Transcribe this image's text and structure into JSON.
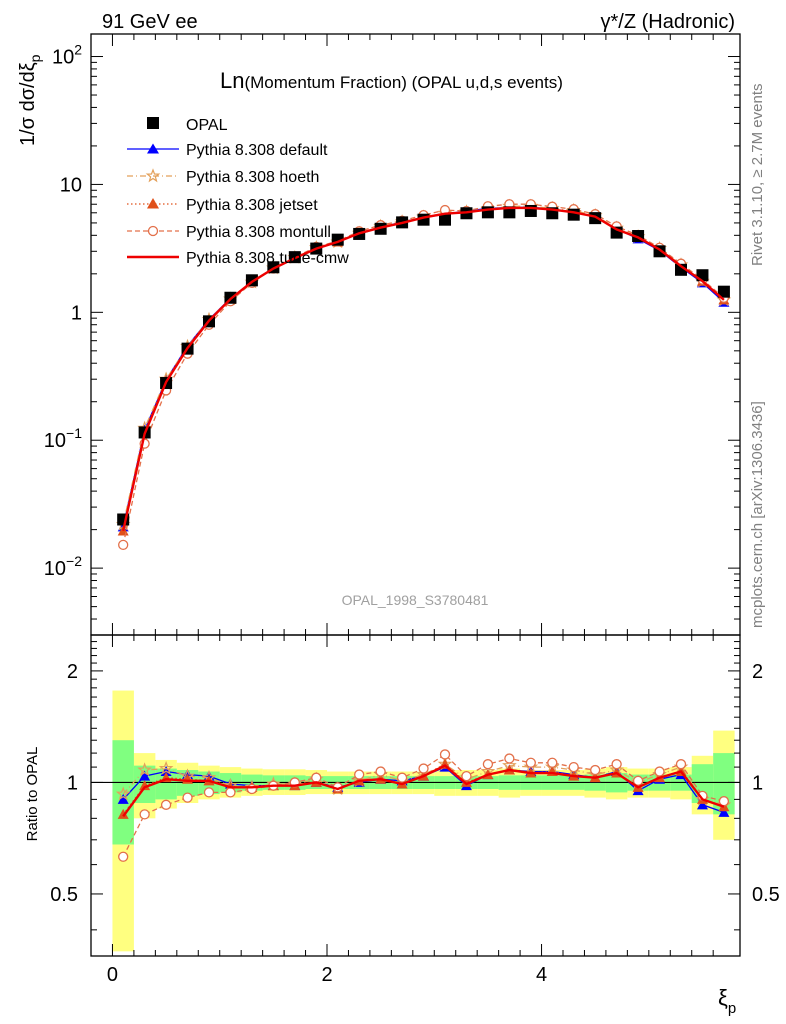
{
  "header": {
    "left": "91 GeV ee",
    "right": "γ*/Z (Hadronic)"
  },
  "side_text": {
    "rivet": "Rivet 3.1.10, ≥ 2.7M events",
    "mcplots": "mcplots.cern.ch [arXiv:1306.3436]"
  },
  "watermark": "OPAL_1998_S3780481",
  "colors": {
    "opal": "#000000",
    "default": "#0000ff",
    "hoeth": "#e3a05a",
    "jetset": "#e0501a",
    "montull": "#e3704a",
    "tunecmw": "#ee0000",
    "band_inner": "#80ff80",
    "band_outer": "#ffff80"
  },
  "chart_data": [
    {
      "type": "line",
      "title_main": "Ln",
      "title_rest": "(Momentum Fraction) (OPAL u,d,s events)",
      "ylabel": "1/σ dσ/dξ_p",
      "yscale": "log",
      "ylim": [
        0.003,
        150
      ],
      "xlim": [
        -0.2,
        5.85
      ],
      "yticks": [
        {
          "value": 100,
          "base": "10",
          "exp": "2"
        },
        {
          "value": 10,
          "base": "10",
          "exp": ""
        },
        {
          "value": 1,
          "base": "1",
          "exp": ""
        },
        {
          "value": 0.1,
          "base": "10",
          "exp": "−1"
        },
        {
          "value": 0.01,
          "base": "10",
          "exp": "−2"
        }
      ],
      "x": [
        0.1,
        0.3,
        0.5,
        0.7,
        0.9,
        1.1,
        1.3,
        1.5,
        1.7,
        1.9,
        2.1,
        2.3,
        2.5,
        2.7,
        2.9,
        3.1,
        3.3,
        3.5,
        3.7,
        3.9,
        4.1,
        4.3,
        4.5,
        4.7,
        4.9,
        5.1,
        5.3,
        5.5,
        5.7
      ],
      "data": {
        "name": "OPAL",
        "values": [
          0.024,
          0.115,
          0.28,
          0.52,
          0.85,
          1.3,
          1.78,
          2.25,
          2.7,
          3.15,
          3.7,
          4.1,
          4.5,
          5.05,
          5.3,
          5.3,
          5.95,
          6.05,
          6.05,
          6.2,
          5.95,
          5.8,
          5.45,
          4.2,
          3.95,
          3.0,
          2.15,
          1.95,
          1.45
        ]
      },
      "series": [
        {
          "name": "Pythia 8.308 default",
          "key": "default",
          "values": [
            0.021,
            0.12,
            0.295,
            0.545,
            0.88,
            1.29,
            1.73,
            2.2,
            2.65,
            3.15,
            3.6,
            4.1,
            4.6,
            5.1,
            5.5,
            5.85,
            6.2,
            6.5,
            6.6,
            6.65,
            6.4,
            6.1,
            5.6,
            4.5,
            3.75,
            3.05,
            2.25,
            1.7,
            1.2
          ]
        },
        {
          "name": "Pythia 8.308 hoeth",
          "key": "hoeth",
          "values": [
            0.022,
            0.124,
            0.3,
            0.54,
            0.88,
            1.27,
            1.72,
            2.22,
            2.68,
            3.2,
            3.55,
            4.15,
            4.7,
            5.1,
            5.55,
            5.95,
            6.1,
            6.45,
            6.75,
            6.75,
            6.5,
            6.25,
            5.7,
            4.55,
            3.9,
            3.15,
            2.35,
            1.75,
            1.25
          ]
        },
        {
          "name": "Pythia 8.308 jetset",
          "key": "jetset",
          "values": [
            0.0195,
            0.113,
            0.29,
            0.53,
            0.86,
            1.26,
            1.73,
            2.2,
            2.65,
            3.15,
            3.55,
            4.15,
            4.6,
            5.0,
            5.55,
            5.95,
            6.05,
            6.35,
            6.55,
            6.6,
            6.35,
            6.05,
            5.6,
            4.45,
            3.85,
            3.1,
            2.3,
            1.75,
            1.25
          ]
        },
        {
          "name": "Pythia 8.308 montull",
          "key": "montull",
          "values": [
            0.0152,
            0.094,
            0.245,
            0.475,
            0.8,
            1.22,
            1.7,
            2.2,
            2.7,
            3.25,
            3.6,
            4.3,
            4.8,
            5.2,
            5.75,
            6.3,
            6.2,
            6.75,
            7.0,
            7.0,
            6.7,
            6.4,
            5.85,
            4.7,
            4.0,
            3.2,
            2.4,
            1.8,
            1.3
          ]
        },
        {
          "name": "Pythia 8.308 tune-cmw",
          "key": "tunecmw",
          "values": [
            0.0196,
            0.112,
            0.285,
            0.525,
            0.86,
            1.27,
            1.73,
            2.2,
            2.65,
            3.15,
            3.55,
            4.15,
            4.6,
            5.0,
            5.5,
            5.9,
            6.05,
            6.35,
            6.55,
            6.55,
            6.35,
            6.05,
            5.6,
            4.45,
            3.85,
            3.1,
            2.3,
            1.75,
            1.25
          ]
        }
      ]
    },
    {
      "type": "line",
      "ylabel": "Ratio to OPAL",
      "xlabel": "ξ_p",
      "yscale": "log",
      "ylim": [
        0.34,
        2.5
      ],
      "xlim": [
        -0.2,
        5.85
      ],
      "yticks": [
        {
          "value": 2,
          "label": "2"
        },
        {
          "value": 1,
          "label": "1"
        },
        {
          "value": 0.5,
          "label": "0.5"
        }
      ],
      "xticks": [
        {
          "value": 0,
          "label": "0"
        },
        {
          "value": 2,
          "label": "2"
        },
        {
          "value": 4,
          "label": "4"
        }
      ],
      "reference": 1,
      "bin_edges": [
        0.0,
        0.2,
        0.4,
        0.6,
        0.8,
        1.0,
        1.2,
        1.4,
        1.6,
        1.8,
        2.0,
        2.2,
        2.4,
        2.6,
        2.8,
        3.0,
        3.2,
        3.4,
        3.6,
        3.8,
        4.0,
        4.2,
        4.4,
        4.6,
        4.8,
        5.0,
        5.2,
        5.4,
        5.6,
        5.8
      ],
      "band_inner": {
        "lo": [
          0.68,
          0.88,
          0.9,
          0.92,
          0.93,
          0.94,
          0.95,
          0.955,
          0.955,
          0.96,
          0.96,
          0.96,
          0.96,
          0.96,
          0.96,
          0.96,
          0.96,
          0.96,
          0.955,
          0.955,
          0.955,
          0.955,
          0.95,
          0.94,
          0.95,
          0.95,
          0.95,
          0.88,
          0.82
        ],
        "hi": [
          1.3,
          1.11,
          1.09,
          1.08,
          1.07,
          1.06,
          1.05,
          1.045,
          1.045,
          1.04,
          1.04,
          1.04,
          1.04,
          1.04,
          1.04,
          1.04,
          1.04,
          1.04,
          1.045,
          1.045,
          1.045,
          1.045,
          1.05,
          1.06,
          1.05,
          1.05,
          1.05,
          1.12,
          1.2
        ]
      },
      "band_outer": {
        "lo": [
          0.35,
          0.8,
          0.85,
          0.88,
          0.9,
          0.91,
          0.92,
          0.925,
          0.925,
          0.93,
          0.93,
          0.93,
          0.93,
          0.93,
          0.93,
          0.92,
          0.92,
          0.92,
          0.91,
          0.92,
          0.92,
          0.92,
          0.91,
          0.9,
          0.91,
          0.91,
          0.9,
          0.82,
          0.7
        ],
        "hi": [
          1.77,
          1.2,
          1.15,
          1.13,
          1.11,
          1.1,
          1.09,
          1.085,
          1.085,
          1.08,
          1.07,
          1.07,
          1.07,
          1.07,
          1.07,
          1.08,
          1.08,
          1.08,
          1.09,
          1.08,
          1.08,
          1.08,
          1.09,
          1.1,
          1.09,
          1.09,
          1.1,
          1.18,
          1.38
        ]
      },
      "x": [
        0.1,
        0.3,
        0.5,
        0.7,
        0.9,
        1.1,
        1.3,
        1.5,
        1.7,
        1.9,
        2.1,
        2.3,
        2.5,
        2.7,
        2.9,
        3.1,
        3.3,
        3.5,
        3.7,
        3.9,
        4.1,
        4.3,
        4.5,
        4.7,
        4.9,
        5.1,
        5.3,
        5.5,
        5.7
      ],
      "series": [
        {
          "key": "default",
          "values": [
            0.9,
            1.04,
            1.07,
            1.05,
            1.04,
            0.99,
            0.98,
            0.98,
            0.98,
            1.0,
            0.97,
            1.0,
            1.02,
            1.01,
            1.04,
            1.1,
            0.98,
            1.05,
            1.08,
            1.07,
            1.07,
            1.05,
            1.03,
            1.07,
            0.95,
            1.02,
            1.05,
            0.87,
            0.83
          ]
        },
        {
          "key": "hoeth",
          "values": [
            0.93,
            1.08,
            1.09,
            1.04,
            1.03,
            0.98,
            0.97,
            0.99,
            0.99,
            1.02,
            0.96,
            1.01,
            1.05,
            1.01,
            1.05,
            1.12,
            1.02,
            1.07,
            1.11,
            1.1,
            1.1,
            1.08,
            1.05,
            1.08,
            1.0,
            1.05,
            1.1,
            0.9,
            0.87
          ]
        },
        {
          "key": "jetset",
          "values": [
            0.82,
            0.98,
            1.03,
            1.02,
            1.01,
            0.97,
            0.97,
            0.98,
            0.98,
            1.0,
            0.96,
            1.01,
            1.02,
            0.99,
            1.04,
            1.12,
            1.0,
            1.05,
            1.08,
            1.06,
            1.07,
            1.04,
            1.03,
            1.06,
            0.97,
            1.03,
            1.07,
            0.9,
            0.86
          ]
        },
        {
          "key": "montull",
          "values": [
            0.63,
            0.82,
            0.87,
            0.91,
            0.94,
            0.94,
            0.96,
            0.98,
            1.0,
            1.03,
            0.97,
            1.05,
            1.07,
            1.03,
            1.09,
            1.19,
            1.04,
            1.12,
            1.16,
            1.13,
            1.13,
            1.1,
            1.08,
            1.12,
            1.01,
            1.07,
            1.12,
            0.92,
            0.89
          ]
        },
        {
          "key": "tunecmw",
          "values": [
            0.81,
            0.97,
            1.02,
            1.01,
            1.01,
            0.97,
            0.97,
            0.98,
            0.98,
            1.0,
            0.96,
            1.01,
            1.02,
            0.99,
            1.04,
            1.11,
            0.99,
            1.05,
            1.08,
            1.06,
            1.06,
            1.04,
            1.03,
            1.06,
            0.97,
            1.03,
            1.07,
            0.9,
            0.86
          ]
        }
      ]
    }
  ]
}
